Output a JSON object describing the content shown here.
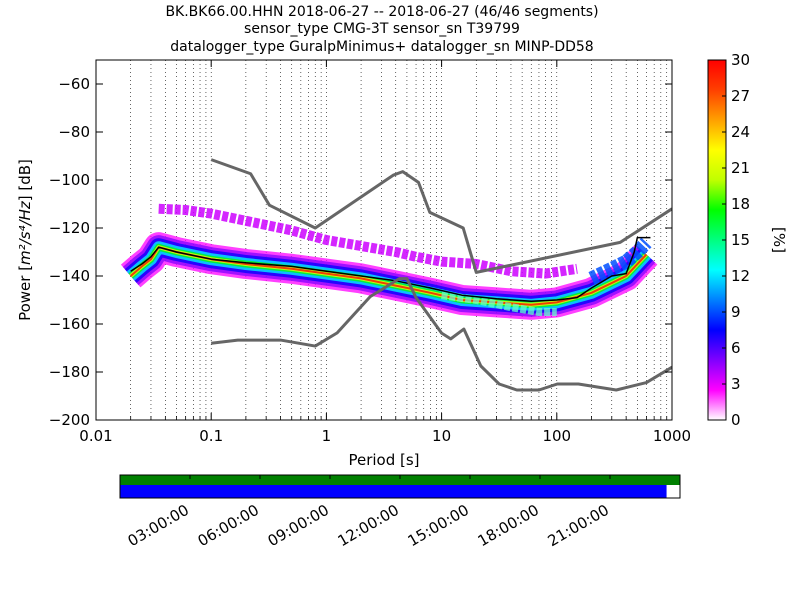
{
  "title": {
    "line1": "BK.BK66.00.HHN   2018-06-27 -- 2018-06-27  (46/46 segments)",
    "line2": "sensor_type CMG-3T sensor_sn T39799",
    "line3": "datalogger_type GuralpMinimus+ datalogger_sn MINP-DD58"
  },
  "chart_data": [
    {
      "type": "heatmap",
      "xlabel": "Period [s]",
      "ylabel": "Power",
      "ylabel_math": "m²/s⁴/Hz",
      "ylabel_unit": "[dB]",
      "x_scale": "log",
      "xlim": [
        0.01,
        1000
      ],
      "ylim": [
        -200,
        -50
      ],
      "x_ticks": [
        {
          "value": 0.01,
          "label": "0.01"
        },
        {
          "value": 0.1,
          "label": "0.1"
        },
        {
          "value": 1,
          "label": "1"
        },
        {
          "value": 10,
          "label": "10"
        },
        {
          "value": 100,
          "label": "100"
        },
        {
          "value": 1000,
          "label": "1000"
        }
      ],
      "y_ticks": [
        {
          "value": -60,
          "label": "−60"
        },
        {
          "value": -80,
          "label": "−80"
        },
        {
          "value": -100,
          "label": "−100"
        },
        {
          "value": -120,
          "label": "−120"
        },
        {
          "value": -140,
          "label": "−140"
        },
        {
          "value": -160,
          "label": "−160"
        },
        {
          "value": -180,
          "label": "−180"
        },
        {
          "value": -200,
          "label": "−200"
        }
      ],
      "grid": "dotted vertical",
      "colorbar": {
        "label": "[%]",
        "range": [
          0,
          30
        ],
        "ticks": [
          {
            "value": 0,
            "label": "0"
          },
          {
            "value": 3,
            "label": "3"
          },
          {
            "value": 6,
            "label": "6"
          },
          {
            "value": 9,
            "label": "9"
          },
          {
            "value": 12,
            "label": "12"
          },
          {
            "value": 15,
            "label": "15"
          },
          {
            "value": 18,
            "label": "18"
          },
          {
            "value": 21,
            "label": "21"
          },
          {
            "value": 24,
            "label": "24"
          },
          {
            "value": 27,
            "label": "27"
          },
          {
            "value": 30,
            "label": "30"
          }
        ],
        "colors": [
          "#ffffff",
          "#ff00ff",
          "#8000ff",
          "#0000ff",
          "#0080ff",
          "#00ffff",
          "#00ff80",
          "#00ff00",
          "#c0ff00",
          "#ffff00",
          "#ffa000",
          "#ff4000",
          "#ff0000"
        ]
      },
      "bands": [
        {
          "name": "upper",
          "color": "#cc00ff",
          "points": [
            [
              0.035,
              -112
            ],
            [
              0.06,
              -112.5
            ],
            [
              0.1,
              -114
            ],
            [
              0.2,
              -117
            ],
            [
              0.5,
              -121
            ],
            [
              1,
              -125
            ],
            [
              2,
              -127.5
            ],
            [
              4,
              -130
            ],
            [
              6,
              -132
            ],
            [
              10,
              -134
            ],
            [
              20,
              -135
            ],
            [
              40,
              -138
            ],
            [
              80,
              -139
            ],
            [
              150,
              -137
            ]
          ]
        },
        {
          "name": "main",
          "color": "#00cccc",
          "points": [
            [
              0.02,
              -140
            ],
            [
              0.025,
              -136
            ],
            [
              0.03,
              -133
            ],
            [
              0.035,
              -128
            ],
            [
              0.05,
              -130
            ],
            [
              0.1,
              -133
            ],
            [
              0.2,
              -135
            ],
            [
              0.5,
              -137
            ],
            [
              1,
              -139
            ],
            [
              2,
              -141
            ],
            [
              4,
              -144
            ],
            [
              8,
              -147
            ],
            [
              15,
              -150
            ],
            [
              30,
              -151
            ],
            [
              60,
              -152
            ],
            [
              100,
              -151
            ],
            [
              200,
              -147
            ],
            [
              400,
              -140
            ],
            [
              600,
              -131
            ]
          ]
        },
        {
          "name": "low-tail",
          "color": "#66ffcc",
          "points": [
            [
              10,
              -148
            ],
            [
              20,
              -150
            ],
            [
              40,
              -153
            ],
            [
              70,
              -155
            ],
            [
              100,
              -155
            ]
          ]
        },
        {
          "name": "long-period",
          "color": "#0050ff",
          "points": [
            [
              200,
              -141
            ],
            [
              300,
              -137
            ],
            [
              400,
              -134
            ],
            [
              500,
              -130
            ],
            [
              600,
              -126
            ]
          ]
        }
      ],
      "mode_line": [
        [
          0.02,
          -138
        ],
        [
          0.025,
          -135
        ],
        [
          0.03,
          -132
        ],
        [
          0.035,
          -128
        ],
        [
          0.05,
          -130
        ],
        [
          0.1,
          -133
        ],
        [
          0.2,
          -134.5
        ],
        [
          0.5,
          -136
        ],
        [
          1,
          -138
        ],
        [
          2,
          -140
        ],
        [
          4,
          -142
        ],
        [
          8,
          -145
        ],
        [
          15,
          -148
        ],
        [
          30,
          -149.5
        ],
        [
          60,
          -150.5
        ],
        [
          100,
          -150
        ],
        [
          150,
          -149
        ],
        [
          200,
          -145
        ],
        [
          300,
          -140
        ],
        [
          400,
          -139
        ],
        [
          470,
          -130
        ],
        [
          500,
          -124
        ],
        [
          650,
          -124
        ]
      ],
      "nlnm": [
        [
          0.1,
          -168
        ],
        [
          0.17,
          -166.7
        ],
        [
          0.4,
          -166.7
        ],
        [
          0.8,
          -169.2
        ],
        [
          1.24,
          -163.7
        ],
        [
          2.4,
          -148.6
        ],
        [
          4.3,
          -141.1
        ],
        [
          5,
          -141.1
        ],
        [
          6,
          -149
        ],
        [
          10,
          -163.8
        ],
        [
          12,
          -166.2
        ],
        [
          15.6,
          -162.1
        ],
        [
          21.9,
          -177.5
        ],
        [
          31.6,
          -185
        ],
        [
          45,
          -187.5
        ],
        [
          70,
          -187.5
        ],
        [
          101,
          -185
        ],
        [
          154,
          -185
        ],
        [
          328,
          -187.5
        ],
        [
          600,
          -184.4
        ],
        [
          1000,
          -178
        ]
      ],
      "nhnm": [
        [
          0.1,
          -91.5
        ],
        [
          0.22,
          -97.4
        ],
        [
          0.32,
          -110.5
        ],
        [
          0.8,
          -120
        ],
        [
          3.8,
          -98
        ],
        [
          4.6,
          -96.5
        ],
        [
          6.3,
          -101
        ],
        [
          7.9,
          -113.5
        ],
        [
          15.4,
          -120
        ],
        [
          20,
          -138.5
        ],
        [
          354.8,
          -126
        ],
        [
          1000,
          -112
        ]
      ],
      "data_availability": {
        "ticks": [
          "03:00:00",
          "06:00:00",
          "09:00:00",
          "12:00:00",
          "15:00:00",
          "18:00:00",
          "21:00:00"
        ],
        "segment_fraction": 0.976,
        "gap_fraction": 1.0
      }
    }
  ]
}
